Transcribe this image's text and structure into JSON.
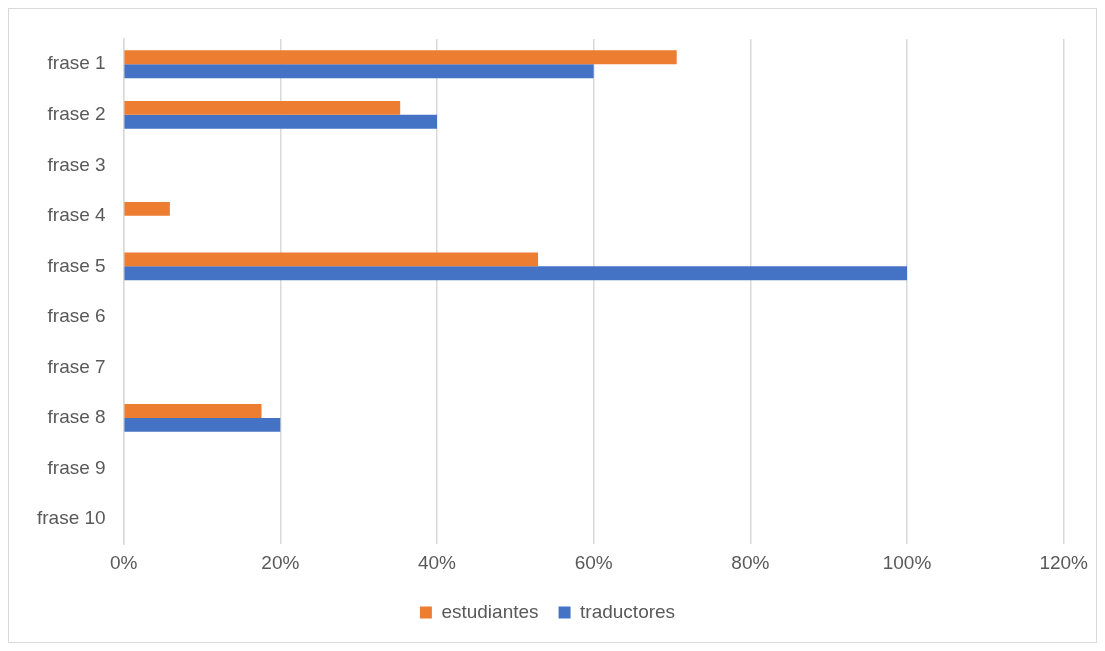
{
  "chart_data": {
    "type": "bar",
    "orientation": "horizontal",
    "categories": [
      "frase 1",
      "frase 2",
      "frase 3",
      "frase 4",
      "frase 5",
      "frase 6",
      "frase 7",
      "frase 8",
      "frase 9",
      "frase 10"
    ],
    "series": [
      {
        "name": "estudiantes",
        "color": "#ed7d31",
        "values": [
          70.6,
          35.3,
          0,
          5.9,
          52.9,
          0,
          0,
          17.6,
          0,
          0
        ]
      },
      {
        "name": "traductores",
        "color": "#4472c4",
        "values": [
          60,
          40,
          0,
          0,
          100,
          0,
          0,
          20,
          0,
          0
        ]
      }
    ],
    "xlim": [
      0,
      120
    ],
    "xticks": [
      {
        "value": 0,
        "label": "0%"
      },
      {
        "value": 20,
        "label": "20%"
      },
      {
        "value": 40,
        "label": "40%"
      },
      {
        "value": 60,
        "label": "60%"
      },
      {
        "value": 80,
        "label": "80%"
      },
      {
        "value": 100,
        "label": "100%"
      },
      {
        "value": 120,
        "label": "120%"
      }
    ],
    "grid": "x",
    "legend": "bottom"
  }
}
